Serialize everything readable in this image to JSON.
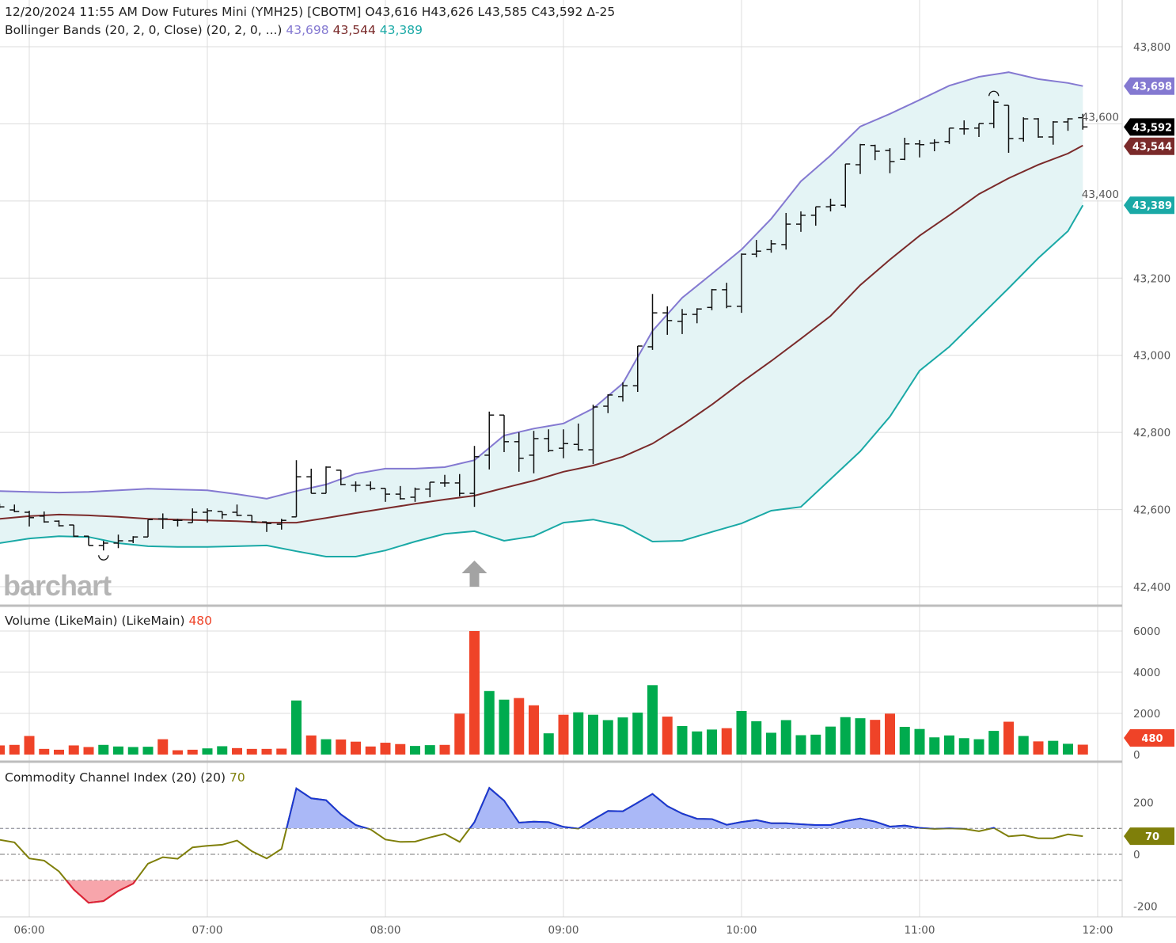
{
  "header": {
    "line1": "12/20/2024 11:55 AM Dow Futures Mini (YMH25) [CBOTM] O43,616 H43,626 L43,585 C43,592 Δ-25",
    "bb_label": "Bollinger Bands (20, 2, 0, Close)  (20, 2, 0, ...)",
    "bb_upper": "43,698",
    "bb_middle": "43,544",
    "bb_lower": "43,389",
    "volume_label": "Volume (LikeMain)  (LikeMain)",
    "volume_value": "480",
    "cci_label": "Commodity Channel Index (20)  (20)",
    "cci_value": "70"
  },
  "watermark": "barchart",
  "badges": {
    "upper": "43,698",
    "last": "43,592",
    "middle": "43,544",
    "lower": "43,389",
    "volume": "480",
    "cci": "70"
  },
  "colors": {
    "upper": "#8479d1",
    "middle": "#7a2a2a",
    "lower": "#1aa9a6",
    "band_fill": "#e4f4f5",
    "up": "#00ab4e",
    "down": "#ef4328",
    "cci_line": "#7f7f0a",
    "cci_over": "#1a36d6",
    "cci_over_fill": "#aab8f7",
    "cci_under": "#e0203a",
    "cci_under_fill": "#f7a5ab",
    "last": "#000000"
  },
  "chart_data": [
    {
      "type": "ohlc",
      "title": "Dow Futures Mini (YMH25)",
      "ylim": [
        42400,
        43800
      ],
      "yticks": [
        "43,800",
        "43,600",
        "43,400",
        "43,200",
        "43,000",
        "42,800",
        "42,600",
        "42,400"
      ],
      "ytick_values": [
        43800,
        43600,
        43400,
        43200,
        43000,
        42800,
        42600,
        42400
      ],
      "grid": true,
      "bar_interval_minutes": 5,
      "bars": [
        [
          "05:50",
          42612,
          42615,
          42603,
          42607
        ],
        [
          "05:55",
          42599,
          42613,
          42593,
          42595
        ],
        [
          "06:00",
          42593,
          42597,
          42556,
          42579
        ],
        [
          "06:05",
          42583,
          42595,
          42566,
          42568
        ],
        [
          "06:10",
          42570,
          42572,
          42556,
          42558
        ],
        [
          "06:15",
          42560,
          42560,
          42529,
          42531
        ],
        [
          "06:20",
          42531,
          42531,
          42507,
          42507
        ],
        [
          "06:25",
          42507,
          42519,
          42494,
          42513
        ],
        [
          "06:30",
          42513,
          42535,
          42500,
          42519
        ],
        [
          "06:35",
          42519,
          42531,
          42513,
          42529
        ],
        [
          "06:40",
          42529,
          42574,
          42529,
          42574
        ],
        [
          "06:45",
          42576,
          42590,
          42550,
          42576
        ],
        [
          "06:50",
          42572,
          42576,
          42556,
          42572
        ],
        [
          "06:55",
          42566,
          42603,
          42566,
          42593
        ],
        [
          "07:00",
          42593,
          42603,
          42566,
          42597
        ],
        [
          "07:05",
          42595,
          42595,
          42576,
          42587
        ],
        [
          "07:10",
          42593,
          42613,
          42583,
          42585
        ],
        [
          "07:15",
          42585,
          42585,
          42566,
          42568
        ],
        [
          "07:20",
          42568,
          42568,
          42542,
          42564
        ],
        [
          "07:25",
          42562,
          42576,
          42548,
          42572
        ],
        [
          "07:30",
          42581,
          42728,
          42581,
          42685
        ],
        [
          "07:35",
          42685,
          42706,
          42642,
          42642
        ],
        [
          "07:40",
          42642,
          42712,
          42642,
          42710
        ],
        [
          "07:45",
          42702,
          42702,
          42663,
          42665
        ],
        [
          "07:50",
          42663,
          42673,
          42646,
          42663
        ],
        [
          "07:55",
          42663,
          42673,
          42650,
          42655
        ],
        [
          "08:00",
          42655,
          42655,
          42620,
          42640
        ],
        [
          "08:05",
          42640,
          42661,
          42626,
          42628
        ],
        [
          "08:10",
          42632,
          42657,
          42620,
          42653
        ],
        [
          "08:15",
          42653,
          42671,
          42632,
          42671
        ],
        [
          "08:20",
          42669,
          42690,
          42659,
          42669
        ],
        [
          "08:25",
          42669,
          42692,
          42634,
          42642
        ],
        [
          "08:30",
          42642,
          42765,
          42607,
          42737
        ],
        [
          "08:35",
          42741,
          42854,
          42704,
          42845
        ],
        [
          "08:40",
          42845,
          42845,
          42749,
          42776
        ],
        [
          "08:45",
          42776,
          42800,
          42698,
          42733
        ],
        [
          "08:50",
          42741,
          42804,
          42694,
          42784
        ],
        [
          "08:55",
          42784,
          42808,
          42749,
          42753
        ],
        [
          "09:00",
          42759,
          42808,
          42733,
          42771
        ],
        [
          "09:05",
          42769,
          42823,
          42753,
          42755
        ],
        [
          "09:10",
          42755,
          42872,
          42718,
          42866
        ],
        [
          "09:15",
          42868,
          42899,
          42850,
          42897
        ],
        [
          "09:20",
          42893,
          42930,
          42880,
          42921
        ],
        [
          "09:25",
          42921,
          43024,
          42905,
          43024
        ],
        [
          "09:30",
          43022,
          43159,
          43014,
          43110
        ],
        [
          "09:35",
          43110,
          43127,
          43053,
          43090
        ],
        [
          "09:40",
          43088,
          43120,
          43055,
          43106
        ],
        [
          "09:45",
          43106,
          43122,
          43083,
          43120
        ],
        [
          "09:50",
          43124,
          43172,
          43117,
          43170
        ],
        [
          "09:55",
          43170,
          43188,
          43122,
          43127
        ],
        [
          "10:00",
          43127,
          43264,
          43110,
          43262
        ],
        [
          "10:05",
          43262,
          43299,
          43254,
          43270
        ],
        [
          "10:10",
          43274,
          43299,
          43266,
          43289
        ],
        [
          "10:15",
          43287,
          43369,
          43274,
          43340
        ],
        [
          "10:20",
          43340,
          43373,
          43320,
          43363
        ],
        [
          "10:25",
          43363,
          43385,
          43336,
          43385
        ],
        [
          "10:30",
          43385,
          43406,
          43373,
          43389
        ],
        [
          "10:35",
          43389,
          43496,
          43383,
          43496
        ],
        [
          "10:40",
          43494,
          43548,
          43470,
          43546
        ],
        [
          "10:45",
          43544,
          43546,
          43506,
          43529
        ],
        [
          "10:50",
          43531,
          43537,
          43472,
          43502
        ],
        [
          "10:55",
          43508,
          43564,
          43506,
          43548
        ],
        [
          "11:00",
          43548,
          43558,
          43513,
          43546
        ],
        [
          "11:05",
          43550,
          43560,
          43529,
          43552
        ],
        [
          "11:10",
          43554,
          43589,
          43548,
          43589
        ],
        [
          "11:15",
          43587,
          43609,
          43572,
          43587
        ],
        [
          "11:20",
          43589,
          43601,
          43566,
          43601
        ],
        [
          "11:25",
          43601,
          43662,
          43589,
          43656
        ],
        [
          "11:30",
          43648,
          43648,
          43525,
          43562
        ],
        [
          "11:35",
          43562,
          43617,
          43554,
          43613
        ],
        [
          "11:40",
          43613,
          43615,
          43564,
          43566
        ],
        [
          "11:45",
          43566,
          43607,
          43546,
          43605
        ],
        [
          "11:50",
          43605,
          43615,
          43582,
          43613
        ],
        [
          "11:55",
          43616,
          43626,
          43585,
          43592
        ]
      ],
      "bollinger": {
        "times": [
          "05:50",
          "06:00",
          "06:10",
          "06:20",
          "06:30",
          "06:40",
          "06:50",
          "07:00",
          "07:10",
          "07:20",
          "07:30",
          "07:40",
          "07:50",
          "08:00",
          "08:10",
          "08:20",
          "08:30",
          "08:40",
          "08:50",
          "09:00",
          "09:10",
          "09:20",
          "09:30",
          "09:40",
          "09:50",
          "10:00",
          "10:10",
          "10:20",
          "10:30",
          "10:40",
          "10:50",
          "11:00",
          "11:10",
          "11:20",
          "11:30",
          "11:40",
          "11:50",
          "11:55"
        ],
        "upper": [
          42648,
          42646,
          42644,
          42646,
          42650,
          42654,
          42652,
          42650,
          42640,
          42628,
          42648,
          42665,
          42693,
          42706,
          42706,
          42710,
          42728,
          42792,
          42810,
          42823,
          42862,
          42927,
          43063,
          43149,
          43211,
          43274,
          43354,
          43451,
          43518,
          43593,
          43626,
          43662,
          43699,
          43722,
          43734,
          43716,
          43706,
          43698
        ],
        "middle": [
          42576,
          42583,
          42587,
          42585,
          42581,
          42576,
          42574,
          42572,
          42570,
          42566,
          42566,
          42578,
          42591,
          42603,
          42615,
          42626,
          42636,
          42656,
          42675,
          42698,
          42714,
          42737,
          42771,
          42819,
          42872,
          42930,
          42985,
          43043,
          43102,
          43182,
          43248,
          43310,
          43363,
          43418,
          43459,
          43494,
          43523,
          43544
        ],
        "lower": [
          42513,
          42525,
          42531,
          42529,
          42513,
          42505,
          42503,
          42503,
          42505,
          42507,
          42492,
          42478,
          42478,
          42494,
          42517,
          42537,
          42544,
          42519,
          42531,
          42566,
          42574,
          42558,
          42517,
          42519,
          42542,
          42564,
          42597,
          42607,
          42679,
          42751,
          42841,
          42960,
          43022,
          43098,
          43174,
          43252,
          43322,
          43389
        ]
      },
      "markers": {
        "low_marker_time": "06:25",
        "high_marker_time": "11:25",
        "event_arrow_time": "08:30"
      },
      "xticks": [
        "06:00",
        "07:00",
        "08:00",
        "09:00",
        "10:00",
        "11:00",
        "12:00"
      ]
    },
    {
      "type": "bar",
      "title": "Volume",
      "ylim": [
        0,
        6000
      ],
      "yticks": [
        "6000",
        "4000",
        "2000",
        "0"
      ],
      "ytick_values": [
        6000,
        4000,
        2000,
        0
      ],
      "values": [
        444,
        470,
        902,
        275,
        235,
        444,
        366,
        470,
        392,
        366,
        379,
        745,
        209,
        235,
        300,
        405,
        314,
        275,
        275,
        288,
        2627,
        928,
        745,
        732,
        627,
        392,
        575,
        510,
        418,
        457,
        470,
        1987,
        6000,
        3085,
        2666,
        2745,
        2392,
        1032,
        1934,
        2052,
        1934,
        1673,
        1804,
        2039,
        3372,
        1843,
        1385,
        1124,
        1215,
        1281,
        2117,
        1621,
        1059,
        1673,
        941,
        967,
        1359,
        1817,
        1764,
        1686,
        1987,
        1346,
        1242,
        836,
        928,
        797,
        745,
        1150,
        1595,
        902,
        640,
        667,
        523,
        480
      ],
      "direction": "ddddddduuuuddduuddddududdddduuddduudduduuuuuuduuuduuuuuuuuudduuuuuuududuud"
    },
    {
      "type": "line",
      "title": "Commodity Channel Index (20)",
      "ylim": [
        -230,
        290
      ],
      "yticks": [
        "200",
        "0",
        "-200"
      ],
      "ytick_values": [
        200,
        0,
        -200
      ],
      "levels": [
        100,
        0,
        -100
      ],
      "values": [
        56,
        46,
        -16,
        -24,
        -66,
        -136,
        -187,
        -180,
        -141,
        -113,
        -36,
        -11,
        -17,
        27,
        33,
        37,
        53,
        12,
        -16,
        21,
        254,
        216,
        209,
        154,
        113,
        96,
        57,
        48,
        49,
        65,
        79,
        48,
        124,
        256,
        207,
        122,
        126,
        124,
        106,
        99,
        134,
        167,
        166,
        199,
        233,
        186,
        157,
        137,
        136,
        114,
        125,
        132,
        120,
        120,
        116,
        113,
        113,
        128,
        138,
        126,
        107,
        111,
        102,
        98,
        100,
        98,
        89,
        102,
        69,
        74,
        62,
        62,
        77,
        70
      ]
    }
  ]
}
